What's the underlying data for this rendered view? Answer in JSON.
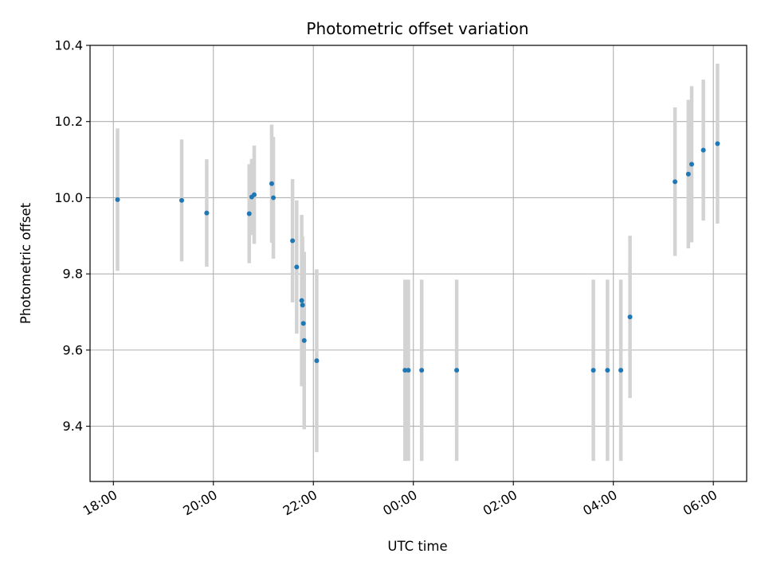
{
  "chart_data": {
    "type": "scatter",
    "title": "Photometric offset variation",
    "xlabel": "UTC time",
    "ylabel": "Photometric offset",
    "x_unit": "UTC time (date/time)",
    "xlim": [
      "2000-01-01T17:32",
      "2000-01-02T06:40"
    ],
    "ylim": [
      9.255,
      10.4
    ],
    "x_ticks": [
      {
        "t": "2000-01-01T18:00",
        "label": "18:00"
      },
      {
        "t": "2000-01-01T20:00",
        "label": "20:00"
      },
      {
        "t": "2000-01-01T22:00",
        "label": "22:00"
      },
      {
        "t": "2000-01-02T00:00",
        "label": "00:00"
      },
      {
        "t": "2000-01-02T02:00",
        "label": "02:00"
      },
      {
        "t": "2000-01-02T04:00",
        "label": "04:00"
      },
      {
        "t": "2000-01-02T06:00",
        "label": "06:00"
      }
    ],
    "y_ticks": [
      {
        "v": 9.4,
        "label": "9.4"
      },
      {
        "v": 9.6,
        "label": "9.6"
      },
      {
        "v": 9.8,
        "label": "9.8"
      },
      {
        "v": 10.0,
        "label": "10.0"
      },
      {
        "v": 10.2,
        "label": "10.2"
      },
      {
        "v": 10.4,
        "label": "10.4"
      }
    ],
    "grid": true,
    "point_color": "#1f77b4",
    "errorbar_color": "#d3d3d3",
    "points": [
      {
        "x": "2000-01-01T18:05",
        "y": 9.995,
        "yerr": 0.187
      },
      {
        "x": "2000-01-01T19:22",
        "y": 9.993,
        "yerr": 0.16
      },
      {
        "x": "2000-01-01T19:52",
        "y": 9.96,
        "yerr": 0.141
      },
      {
        "x": "2000-01-01T20:43",
        "y": 9.958,
        "yerr": 0.13
      },
      {
        "x": "2000-01-01T20:46",
        "y": 10.002,
        "yerr": 0.1
      },
      {
        "x": "2000-01-01T20:49",
        "y": 10.008,
        "yerr": 0.129
      },
      {
        "x": "2000-01-01T21:10",
        "y": 10.037,
        "yerr": 0.155
      },
      {
        "x": "2000-01-01T21:12",
        "y": 10.0,
        "yerr": 0.16
      },
      {
        "x": "2000-01-01T21:35",
        "y": 9.887,
        "yerr": 0.162
      },
      {
        "x": "2000-01-01T21:40",
        "y": 9.818,
        "yerr": 0.175
      },
      {
        "x": "2000-01-01T21:46",
        "y": 9.73,
        "yerr": 0.225
      },
      {
        "x": "2000-01-01T21:47",
        "y": 9.718,
        "yerr": 0.18
      },
      {
        "x": "2000-01-01T21:48",
        "y": 9.67,
        "yerr": 0.165
      },
      {
        "x": "2000-01-01T21:49",
        "y": 9.625,
        "yerr": 0.233
      },
      {
        "x": "2000-01-01T22:04",
        "y": 9.572,
        "yerr": 0.24
      },
      {
        "x": "2000-01-01T23:50",
        "y": 9.547,
        "yerr": 0.238
      },
      {
        "x": "2000-01-01T23:54",
        "y": 9.547,
        "yerr": 0.238
      },
      {
        "x": "2000-01-02T00:10",
        "y": 9.547,
        "yerr": 0.238
      },
      {
        "x": "2000-01-02T00:52",
        "y": 9.547,
        "yerr": 0.238
      },
      {
        "x": "2000-01-02T03:36",
        "y": 9.547,
        "yerr": 0.238
      },
      {
        "x": "2000-01-02T03:53",
        "y": 9.547,
        "yerr": 0.238
      },
      {
        "x": "2000-01-02T04:09",
        "y": 9.547,
        "yerr": 0.238
      },
      {
        "x": "2000-01-02T04:20",
        "y": 9.687,
        "yerr": 0.213
      },
      {
        "x": "2000-01-02T05:14",
        "y": 10.042,
        "yerr": 0.195
      },
      {
        "x": "2000-01-02T05:30",
        "y": 10.062,
        "yerr": 0.195
      },
      {
        "x": "2000-01-02T05:34",
        "y": 10.088,
        "yerr": 0.205
      },
      {
        "x": "2000-01-02T05:48",
        "y": 10.125,
        "yerr": 0.185
      },
      {
        "x": "2000-01-02T06:05",
        "y": 10.142,
        "yerr": 0.21
      }
    ]
  }
}
